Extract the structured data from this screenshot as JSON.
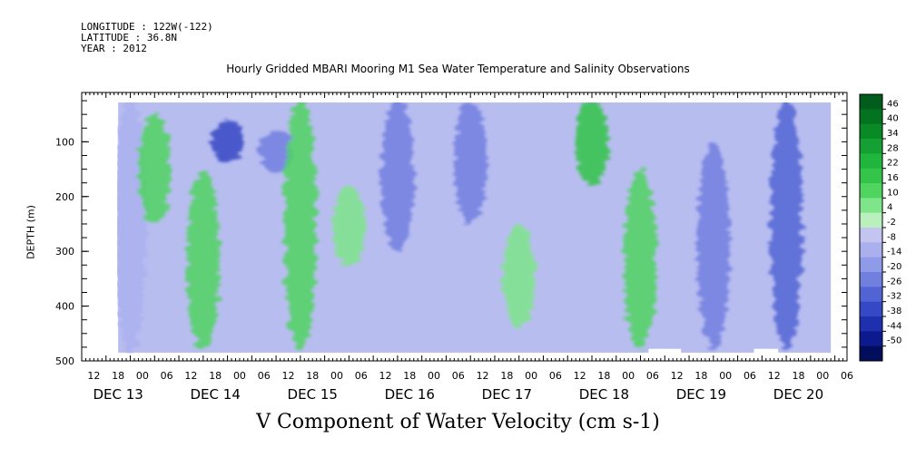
{
  "header": {
    "longitude": "LONGITUDE : 122W(-122)",
    "latitude": "LATITUDE : 36.8N",
    "year": "YEAR : 2012"
  },
  "title": "Hourly Gridded MBARI Mooring M1 Sea Water Temperature and Salinity Observations",
  "caption": "V Component of Water Velocity (cm s-1)",
  "chart_data": {
    "type": "heatmap",
    "title": "Hourly Gridded MBARI Mooring M1 Sea Water Temperature and Salinity Observations",
    "xlabel": "",
    "ylabel": "DEPTH (m)",
    "ylim": [
      500,
      10
    ],
    "y_ticks": [
      "100",
      "200",
      "300",
      "400",
      "500"
    ],
    "y_tick_values": [
      100,
      200,
      300,
      400,
      500
    ],
    "x_hour_ticks": [
      "12",
      "18",
      "00",
      "06",
      "12",
      "18",
      "00",
      "06",
      "12",
      "18",
      "00",
      "06",
      "12",
      "18",
      "00",
      "06",
      "12",
      "18",
      "00",
      "06",
      "12",
      "18",
      "00",
      "06",
      "12",
      "18",
      "00",
      "06",
      "12",
      "18",
      "00",
      "06"
    ],
    "x_day_labels": [
      "DEC 13",
      "DEC 14",
      "DEC 15",
      "DEC 16",
      "DEC 17",
      "DEC 18",
      "DEC 19",
      "DEC 20"
    ],
    "x_range_hours": [
      0,
      189
    ],
    "data_x_range_hours": [
      9,
      185
    ],
    "depth_data_range": [
      20,
      485
    ],
    "colorbar": {
      "labels": [
        "46",
        "40",
        "34",
        "28",
        "22",
        "16",
        "10",
        "4",
        "-2",
        "-8",
        "-14",
        "-20",
        "-26",
        "-32",
        "-38",
        "-44",
        "-50"
      ],
      "colors": [
        "#005c1c",
        "#03731f",
        "#0a8a27",
        "#14a032",
        "#20b53c",
        "#33c449",
        "#4fd460",
        "#7ee58a",
        "#b9f0bd",
        "#c4c4f0",
        "#aab0ee",
        "#8f9ae8",
        "#717fdf",
        "#5264d4",
        "#3649c4",
        "#1f30ae",
        "#0d1a8e",
        "#020d5c"
      ]
    },
    "data": [
      {
        "hour": 12,
        "depth_range": [
          20,
          485
        ],
        "v_cm_s": -10
      },
      {
        "hour": 18,
        "depth_range": [
          50,
          250
        ],
        "v_cm_s": 14
      },
      {
        "hour": 30,
        "depth_range": [
          150,
          480
        ],
        "v_cm_s": 12
      },
      {
        "hour": 36,
        "depth_range": [
          60,
          140
        ],
        "v_cm_s": -32
      },
      {
        "hour": 48,
        "depth_range": [
          80,
          160
        ],
        "v_cm_s": -20
      },
      {
        "hour": 54,
        "depth_range": [
          20,
          480
        ],
        "v_cm_s": 10
      },
      {
        "hour": 66,
        "depth_range": [
          180,
          330
        ],
        "v_cm_s": 8
      },
      {
        "hour": 78,
        "depth_range": [
          20,
          300
        ],
        "v_cm_s": -18
      },
      {
        "hour": 96,
        "depth_range": [
          20,
          250
        ],
        "v_cm_s": -20
      },
      {
        "hour": 108,
        "depth_range": [
          250,
          440
        ],
        "v_cm_s": 8
      },
      {
        "hour": 126,
        "depth_range": [
          20,
          180
        ],
        "v_cm_s": 16
      },
      {
        "hour": 138,
        "depth_range": [
          150,
          480
        ],
        "v_cm_s": 12
      },
      {
        "hour": 156,
        "depth_range": [
          100,
          480
        ],
        "v_cm_s": -20
      },
      {
        "hour": 174,
        "depth_range": [
          20,
          480
        ],
        "v_cm_s": -26
      }
    ]
  }
}
